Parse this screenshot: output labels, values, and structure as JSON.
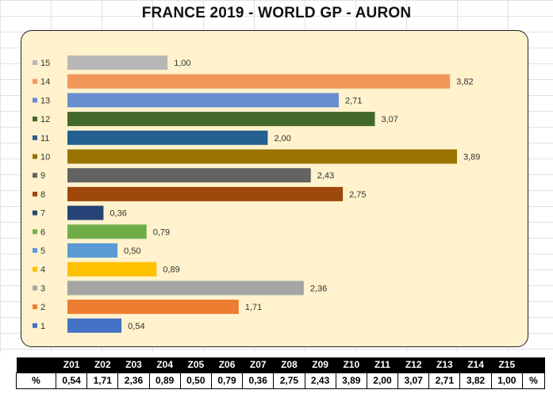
{
  "chart_data": {
    "type": "bar",
    "orientation": "horizontal",
    "title": "FRANCE 2019 - WORLD GP - AURON",
    "xlim": [
      0,
      4.5
    ],
    "grid": false,
    "categories": [
      "1",
      "2",
      "3",
      "4",
      "5",
      "6",
      "7",
      "8",
      "9",
      "10",
      "11",
      "12",
      "13",
      "14",
      "15"
    ],
    "values": [
      0.54,
      1.71,
      2.36,
      0.89,
      0.5,
      0.79,
      0.36,
      2.75,
      2.43,
      3.89,
      2.0,
      3.07,
      2.71,
      3.82,
      1.0
    ],
    "value_labels": [
      "0,54",
      "1,71",
      "2,36",
      "0,89",
      "0,50",
      "0,79",
      "0,36",
      "2,75",
      "2,43",
      "3,89",
      "2,00",
      "3,07",
      "2,71",
      "3,82",
      "1,00"
    ],
    "colors": [
      "#4472c4",
      "#ed7d31",
      "#a5a5a5",
      "#ffc000",
      "#5b9bd5",
      "#70ad47",
      "#264478",
      "#9e480e",
      "#636363",
      "#997300",
      "#255e91",
      "#43682b",
      "#698ed0",
      "#f1975a",
      "#b7b7b7"
    ],
    "legend_position": "left",
    "plot_background": "#fff2cc"
  },
  "table": {
    "headers": [
      "",
      "Z01",
      "Z02",
      "Z03",
      "Z04",
      "Z05",
      "Z06",
      "Z07",
      "Z08",
      "Z09",
      "Z10",
      "Z11",
      "Z12",
      "Z13",
      "Z14",
      "Z15",
      ""
    ],
    "row": [
      "%",
      "0,54",
      "1,71",
      "2,36",
      "0,89",
      "0,50",
      "0,79",
      "0,36",
      "2,75",
      "2,43",
      "3,89",
      "2,00",
      "3,07",
      "2,71",
      "3,82",
      "1,00",
      "%"
    ]
  }
}
